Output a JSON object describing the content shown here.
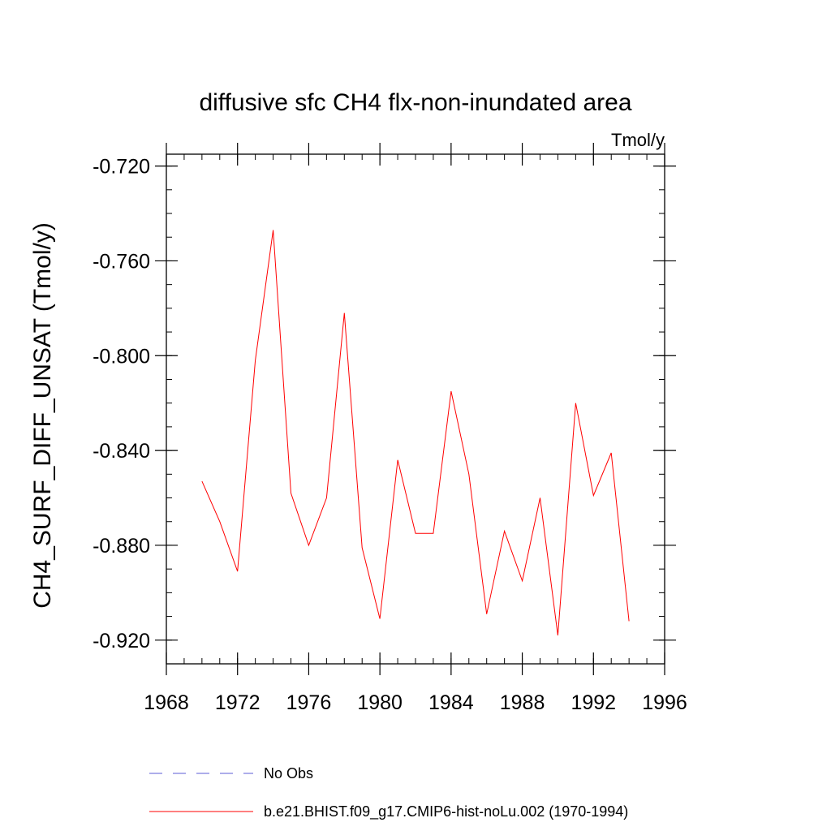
{
  "chart_data": {
    "type": "line",
    "title": "diffusive sfc CH4 flx-non-inundated area",
    "units_label": "Tmol/y",
    "ylabel": "CH4_SURF_DIFF_UNSAT  (Tmol/y)",
    "xlabel": "",
    "xlim": [
      1968,
      1996
    ],
    "ylim": [
      -0.93,
      -0.715
    ],
    "x_ticks": [
      1968,
      1972,
      1976,
      1980,
      1984,
      1988,
      1992,
      1996
    ],
    "x_tick_labels": [
      "1968",
      "1972",
      "1976",
      "1980",
      "1984",
      "1988",
      "1992",
      "1996"
    ],
    "y_ticks": [
      -0.72,
      -0.76,
      -0.8,
      -0.84,
      -0.88,
      -0.92
    ],
    "y_tick_labels": [
      "-0.720",
      "-0.760",
      "-0.800",
      "-0.840",
      "-0.880",
      "-0.920"
    ],
    "grid": false,
    "legend_position": "bottom",
    "series": [
      {
        "name": "b.e21.BHIST.f09_g17.CMIP6-hist-noLu.002 (1970-1994)",
        "color": "#ff0000",
        "style": "solid",
        "x": [
          1970,
          1971,
          1972,
          1973,
          1974,
          1975,
          1976,
          1977,
          1978,
          1979,
          1980,
          1981,
          1982,
          1983,
          1984,
          1985,
          1986,
          1987,
          1988,
          1989,
          1990,
          1991,
          1992,
          1993,
          1994
        ],
        "y": [
          -0.853,
          -0.87,
          -0.891,
          -0.802,
          -0.747,
          -0.858,
          -0.88,
          -0.86,
          -0.782,
          -0.881,
          -0.911,
          -0.844,
          -0.875,
          -0.875,
          -0.815,
          -0.85,
          -0.909,
          -0.874,
          -0.895,
          -0.86,
          -0.918,
          -0.82,
          -0.859,
          -0.841,
          -0.912
        ]
      },
      {
        "name": "No Obs",
        "color": "#5b5bd6",
        "style": "dashed",
        "x": [],
        "y": []
      }
    ]
  }
}
